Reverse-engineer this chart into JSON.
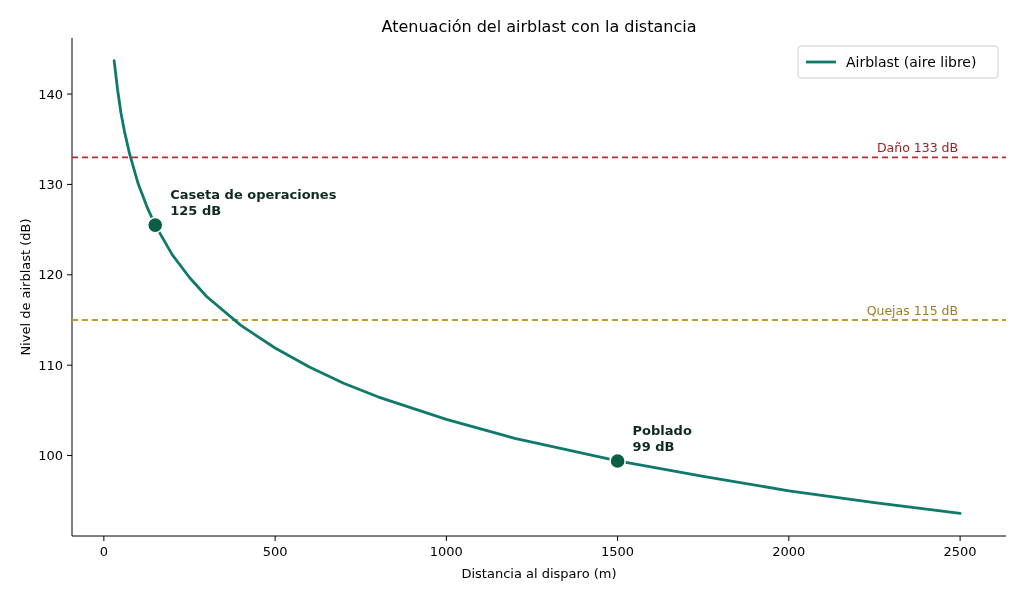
{
  "chart_data": {
    "type": "line",
    "title": "Atenuación del airblast con la distancia",
    "xlabel": "Distancia al disparo (m)",
    "ylabel": "Nivel de airblast (dB)",
    "xlim": [
      -93,
      2634
    ],
    "ylim": [
      91.1,
      146.2
    ],
    "xticks": [
      0,
      500,
      1000,
      1500,
      2000,
      2500
    ],
    "yticks": [
      100,
      110,
      120,
      130,
      140
    ],
    "grid": false,
    "legend": "top right",
    "line_style": "solid",
    "marker": "none",
    "series": [
      {
        "name": "Airblast (aire libre)",
        "color": "#0f7a6a",
        "x": [
          30,
          40,
          50,
          60,
          75,
          100,
          125,
          150,
          200,
          250,
          300,
          400,
          500,
          600,
          700,
          800,
          1000,
          1200,
          1500,
          1750,
          2000,
          2250,
          2500
        ],
        "values": [
          143.7,
          140.5,
          137.9,
          135.9,
          133.4,
          130.1,
          127.6,
          125.5,
          122.2,
          119.7,
          117.6,
          114.4,
          111.9,
          109.8,
          108.0,
          106.5,
          104.0,
          101.9,
          99.4,
          97.7,
          96.1,
          94.8,
          93.6
        ]
      },
      {
        "type": "scatter",
        "marker": "circle",
        "color": "#0b5e45",
        "x": [
          150,
          1500
        ],
        "values": [
          125.5,
          99.4
        ]
      }
    ],
    "ref_lines": [
      {
        "axis": "y",
        "value": 133,
        "label": "Daño 133 dB",
        "color": "#c0282d",
        "line_style": "dashed"
      },
      {
        "axis": "y",
        "value": 115,
        "label": "Quejas 115 dB",
        "color": "#c49a2c",
        "line_style": "dashed"
      }
    ],
    "annotations": [
      {
        "text": "Caseta de operaciones\n125 dB",
        "x": 150,
        "y": 125.5
      },
      {
        "text": "Poblado\n99 dB",
        "x": 1500,
        "y": 99.4
      }
    ]
  }
}
